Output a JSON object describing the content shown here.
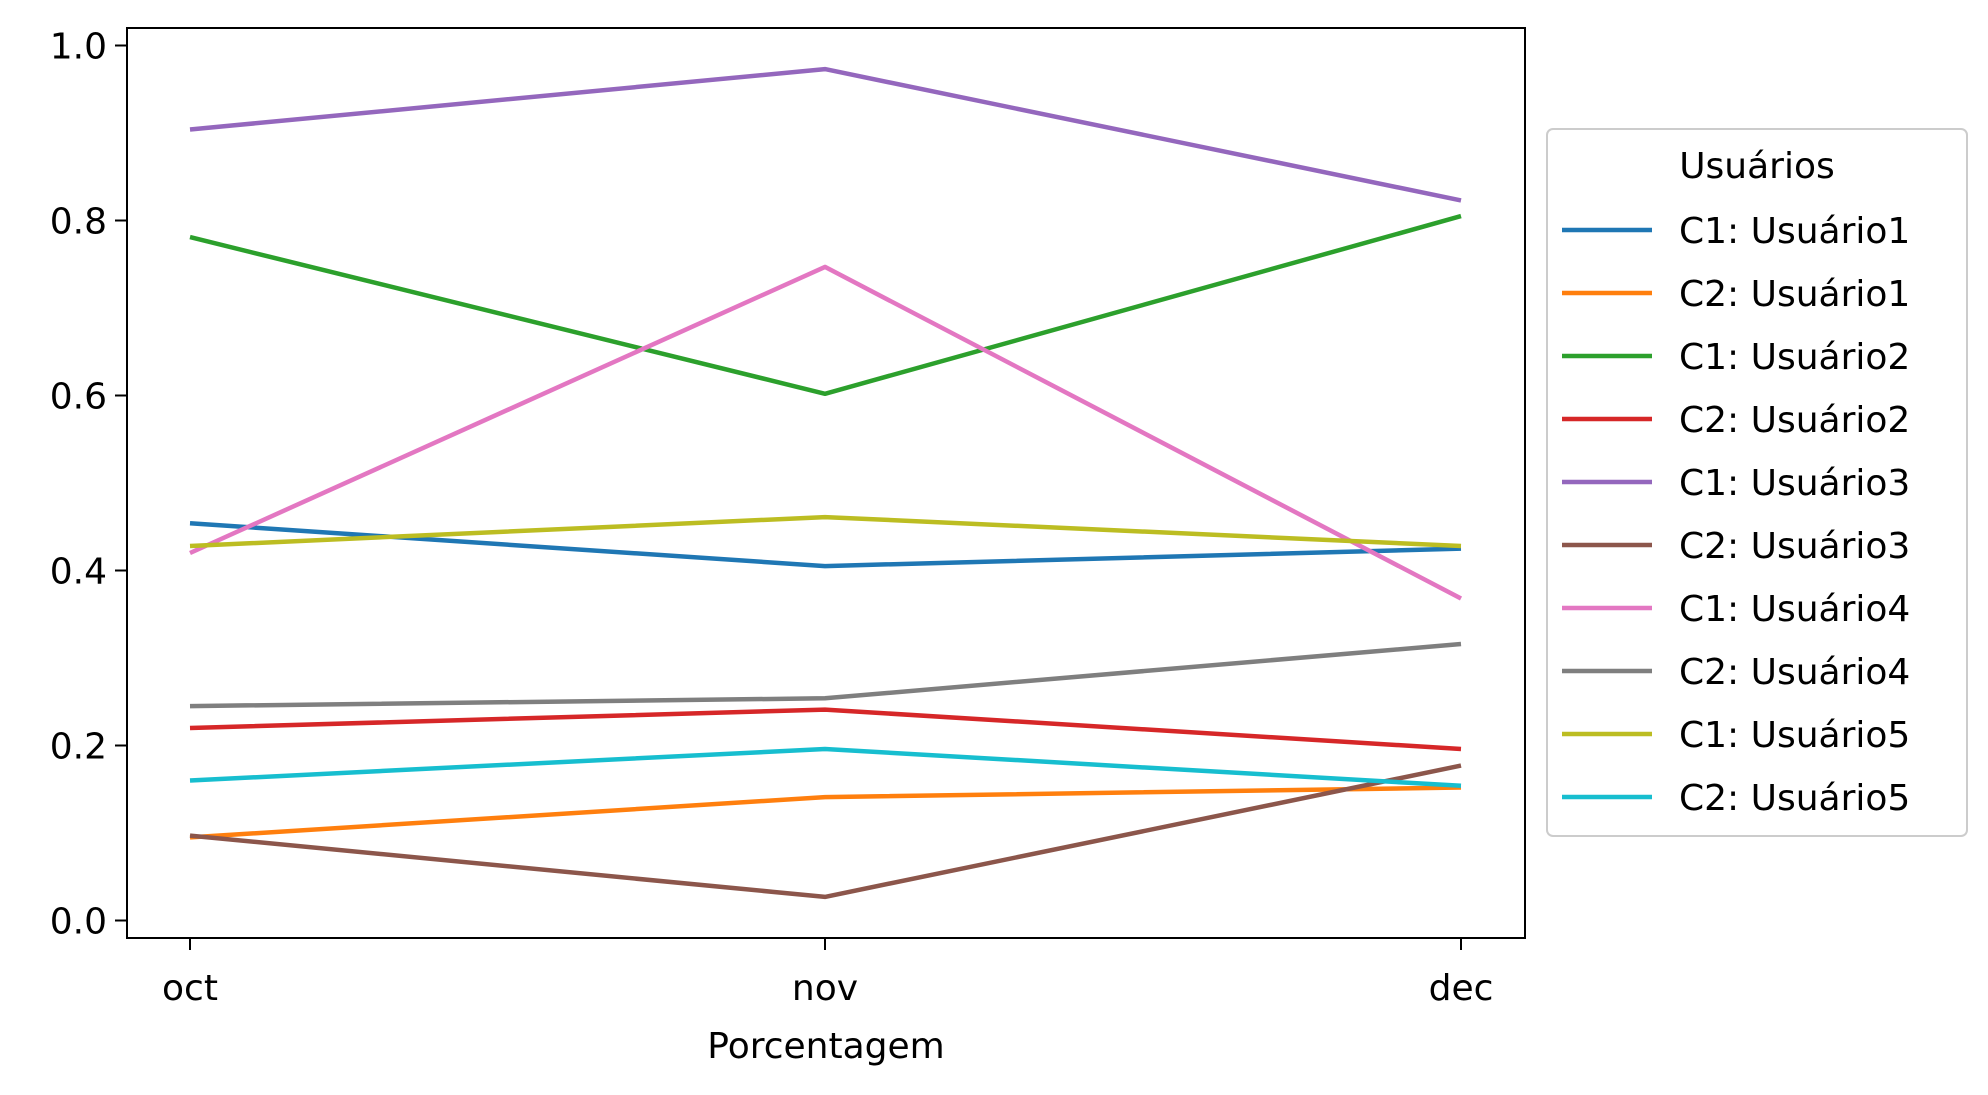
{
  "chart_data": {
    "type": "line",
    "title": "",
    "xlabel": "Porcentagem",
    "ylabel": "",
    "categories": [
      "oct",
      "nov",
      "dec"
    ],
    "ylim": [
      -0.02,
      1.02
    ],
    "yticks": [
      0.0,
      0.2,
      0.4,
      0.6,
      0.8,
      1.0
    ],
    "ytick_labels": [
      "0.0",
      "0.2",
      "0.4",
      "0.6",
      "0.8",
      "1.0"
    ],
    "grid": false,
    "legend": {
      "title": "Usuários",
      "placement": "right-outside"
    },
    "series": [
      {
        "name": "C1: Usuário1",
        "color": "#1f77b4",
        "values": [
          0.454,
          0.405,
          0.425
        ]
      },
      {
        "name": "C2: Usuário1",
        "color": "#ff7f0e",
        "values": [
          0.095,
          0.141,
          0.152
        ]
      },
      {
        "name": "C1: Usuário2",
        "color": "#2ca02c",
        "values": [
          0.781,
          0.602,
          0.805
        ]
      },
      {
        "name": "C2: Usuário2",
        "color": "#d62728",
        "values": [
          0.22,
          0.241,
          0.196
        ]
      },
      {
        "name": "C1: Usuário3",
        "color": "#9467bd",
        "values": [
          0.904,
          0.973,
          0.823
        ]
      },
      {
        "name": "C2: Usuário3",
        "color": "#8c564b",
        "values": [
          0.097,
          0.027,
          0.177
        ]
      },
      {
        "name": "C1: Usuário4",
        "color": "#e377c2",
        "values": [
          0.42,
          0.747,
          0.368
        ]
      },
      {
        "name": "C2: Usuário4",
        "color": "#7f7f7f",
        "values": [
          0.245,
          0.254,
          0.316
        ]
      },
      {
        "name": "C1: Usuário5",
        "color": "#bcbd22",
        "values": [
          0.428,
          0.461,
          0.428
        ]
      },
      {
        "name": "C2: Usuário5",
        "color": "#17becf",
        "values": [
          0.16,
          0.196,
          0.154
        ]
      }
    ]
  }
}
